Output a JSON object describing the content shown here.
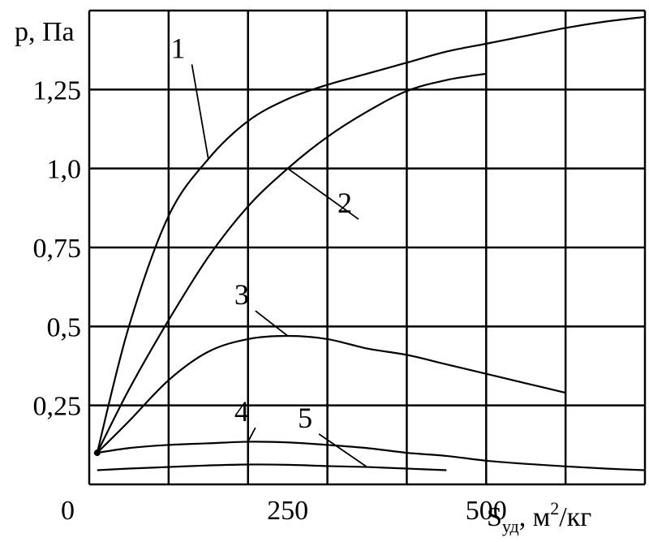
{
  "chart_data": {
    "type": "line",
    "title": "",
    "ylabel": "р, Па",
    "xlabel_main": "S",
    "xlabel_sub": "уд",
    "xlabel_unit": ", м",
    "xlabel_sup": "2",
    "xlabel_tail": "/кг",
    "xlim": [
      0,
      700
    ],
    "ylim": [
      0,
      1.5
    ],
    "grid": true,
    "x_tick_labels": [
      {
        "value": 250,
        "label": "250"
      },
      {
        "value": 500,
        "label": "500"
      }
    ],
    "origin_label": "0",
    "y_tick_labels": [
      {
        "value": 0.25,
        "label": "0,25"
      },
      {
        "value": 0.5,
        "label": "0,5"
      },
      {
        "value": 0.75,
        "label": "0,75"
      },
      {
        "value": 1.0,
        "label": "1,0"
      },
      {
        "value": 1.25,
        "label": "1,25"
      }
    ],
    "series": [
      {
        "name": "1",
        "x": [
          10,
          50,
          100,
          150,
          200,
          250,
          300,
          350,
          400,
          450,
          500,
          550,
          600,
          650,
          700
        ],
        "y": [
          0.1,
          0.5,
          0.85,
          1.03,
          1.15,
          1.22,
          1.265,
          1.3,
          1.335,
          1.37,
          1.395,
          1.42,
          1.445,
          1.465,
          1.48
        ]
      },
      {
        "name": "2",
        "x": [
          10,
          50,
          100,
          150,
          200,
          250,
          300,
          350,
          400,
          450,
          500
        ],
        "y": [
          0.1,
          0.3,
          0.52,
          0.72,
          0.88,
          1.0,
          1.1,
          1.18,
          1.245,
          1.28,
          1.3
        ]
      },
      {
        "name": "3",
        "x": [
          10,
          50,
          100,
          150,
          200,
          250,
          300,
          350,
          400,
          450,
          500,
          550,
          600
        ],
        "y": [
          0.1,
          0.2,
          0.33,
          0.42,
          0.46,
          0.47,
          0.46,
          0.43,
          0.41,
          0.38,
          0.35,
          0.32,
          0.29
        ]
      },
      {
        "name": "4",
        "x": [
          10,
          50,
          100,
          150,
          200,
          250,
          300,
          350,
          400,
          450,
          500,
          550,
          600,
          650,
          700
        ],
        "y": [
          0.1,
          0.115,
          0.125,
          0.13,
          0.135,
          0.133,
          0.125,
          0.115,
          0.1,
          0.09,
          0.075,
          0.065,
          0.057,
          0.05,
          0.045
        ]
      },
      {
        "name": "5",
        "x": [
          10,
          50,
          100,
          150,
          200,
          250,
          300,
          350,
          400,
          450
        ],
        "y": [
          0.045,
          0.05,
          0.055,
          0.06,
          0.063,
          0.062,
          0.058,
          0.055,
          0.05,
          0.045
        ]
      }
    ],
    "label_anchor_x": [
      150,
      250,
      250,
      200,
      350
    ],
    "label_text_x": [
      115,
      325,
      195,
      195,
      275
    ],
    "label_text_y": [
      1.35,
      0.86,
      0.57,
      0.2,
      0.18
    ]
  }
}
